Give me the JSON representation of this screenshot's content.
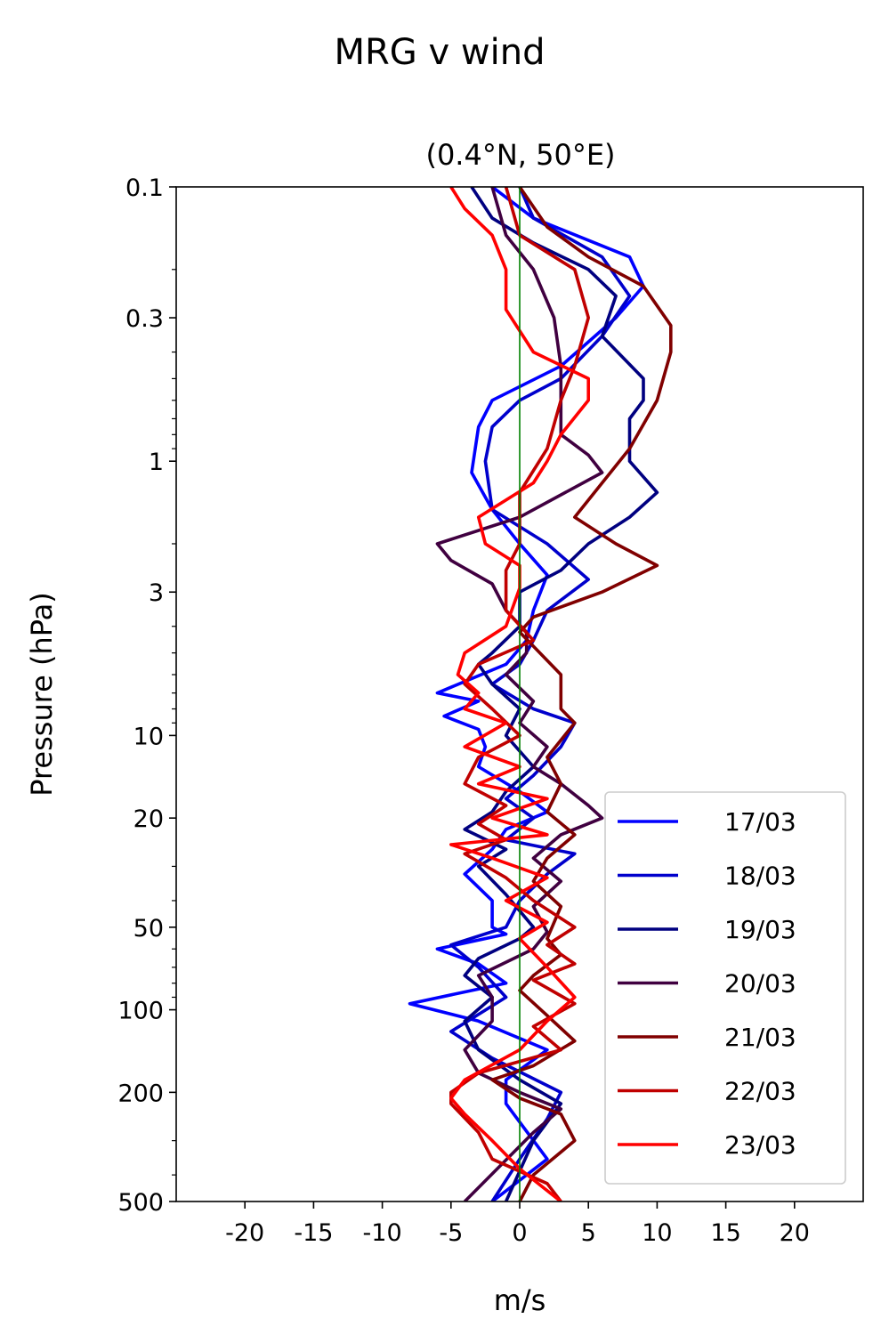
{
  "chart_data": {
    "type": "line",
    "title": "MRG v wind",
    "subtitle": "(0.4°N, 50°E)",
    "xlabel": "m/s",
    "ylabel": "Pressure (hPa)",
    "xlim": [
      -25,
      25
    ],
    "ylim": [
      500,
      0.1
    ],
    "y_scale": "log",
    "x_ticks": [
      -20,
      -15,
      -10,
      -5,
      0,
      5,
      10,
      15,
      20
    ],
    "x_tick_labels": [
      "-20",
      "-15",
      "-10",
      "-5",
      "0",
      "5",
      "10",
      "15",
      "20"
    ],
    "y_ticks": [
      0.1,
      0.3,
      1,
      3,
      10,
      20,
      50,
      100,
      200,
      500
    ],
    "y_tick_labels": [
      "0.1",
      "0.3",
      "1",
      "3",
      "10",
      "20",
      "50",
      "100",
      "200",
      "500"
    ],
    "zero_line_color": "#008000",
    "legend_position": "lower right",
    "grid": false,
    "series": [
      {
        "name": "17/03",
        "color": "#0000ff",
        "points": [
          [
            -2,
            0.1
          ],
          [
            1,
            0.13
          ],
          [
            8,
            0.18
          ],
          [
            9,
            0.23
          ],
          [
            7,
            0.3
          ],
          [
            3,
            0.45
          ],
          [
            -2,
            0.6
          ],
          [
            -3,
            0.75
          ],
          [
            -3.5,
            1.1
          ],
          [
            -2,
            1.5
          ],
          [
            0,
            2
          ],
          [
            2,
            2.6
          ],
          [
            1,
            3.5
          ],
          [
            0.5,
            4.5
          ],
          [
            -1,
            5.5
          ],
          [
            -6,
            7
          ],
          [
            -3,
            7.5
          ],
          [
            -5.5,
            8.5
          ],
          [
            -3,
            9.5
          ],
          [
            -2.5,
            11
          ],
          [
            -3,
            13
          ],
          [
            0,
            16
          ],
          [
            2,
            19
          ],
          [
            -1,
            22
          ],
          [
            -2,
            26
          ],
          [
            -4,
            32
          ],
          [
            -2,
            40
          ],
          [
            -2,
            50
          ],
          [
            -1,
            53
          ],
          [
            -6,
            60
          ],
          [
            -3,
            68
          ],
          [
            -1,
            80
          ],
          [
            -8,
            95
          ],
          [
            -3,
            110
          ],
          [
            2,
            140
          ],
          [
            -1,
            180
          ],
          [
            -1,
            220
          ],
          [
            2,
            350
          ],
          [
            -2,
            500
          ]
        ]
      },
      {
        "name": "18/03",
        "color": "#0000cc",
        "points": [
          [
            0,
            0.1
          ],
          [
            1,
            0.13
          ],
          [
            6,
            0.18
          ],
          [
            8,
            0.25
          ],
          [
            6,
            0.35
          ],
          [
            3,
            0.5
          ],
          [
            0,
            0.6
          ],
          [
            -2,
            0.75
          ],
          [
            -2.5,
            1
          ],
          [
            -2,
            1.5
          ],
          [
            2,
            2
          ],
          [
            5,
            2.7
          ],
          [
            2,
            3.5
          ],
          [
            1,
            4.5
          ],
          [
            0,
            5.5
          ],
          [
            -2,
            6.5
          ],
          [
            1,
            8
          ],
          [
            4,
            9
          ],
          [
            3,
            11
          ],
          [
            1,
            14
          ],
          [
            -1,
            17
          ],
          [
            1,
            20
          ],
          [
            -1,
            24
          ],
          [
            4,
            27
          ],
          [
            2,
            32
          ],
          [
            0,
            40
          ],
          [
            -1,
            50
          ],
          [
            -5,
            58
          ],
          [
            -3,
            70
          ],
          [
            -1,
            90
          ],
          [
            -5,
            120
          ],
          [
            -2,
            150
          ],
          [
            3,
            200
          ],
          [
            2,
            250
          ],
          [
            0,
            350
          ],
          [
            -2,
            500
          ]
        ]
      },
      {
        "name": "19/03",
        "color": "#000080",
        "points": [
          [
            -3.5,
            0.1
          ],
          [
            -2,
            0.13
          ],
          [
            1,
            0.16
          ],
          [
            5,
            0.2
          ],
          [
            7,
            0.25
          ],
          [
            6,
            0.35
          ],
          [
            9,
            0.5
          ],
          [
            9,
            0.6
          ],
          [
            8,
            0.7
          ],
          [
            8,
            1
          ],
          [
            10,
            1.3
          ],
          [
            8,
            1.6
          ],
          [
            5,
            2
          ],
          [
            3,
            2.5
          ],
          [
            0,
            3
          ],
          [
            0,
            4
          ],
          [
            -2,
            5
          ],
          [
            -3,
            5.5
          ],
          [
            -2,
            6.5
          ],
          [
            0,
            8
          ],
          [
            -1,
            10
          ],
          [
            1,
            13
          ],
          [
            -1,
            16
          ],
          [
            -2,
            19
          ],
          [
            -4,
            22
          ],
          [
            -1,
            26
          ],
          [
            -3,
            30
          ],
          [
            -1,
            38
          ],
          [
            1,
            50
          ],
          [
            0,
            55
          ],
          [
            -3,
            65
          ],
          [
            -4,
            75
          ],
          [
            -2,
            90
          ],
          [
            -4,
            110
          ],
          [
            -3,
            140
          ],
          [
            0,
            180
          ],
          [
            3,
            220
          ],
          [
            1,
            300
          ],
          [
            -1,
            500
          ]
        ]
      },
      {
        "name": "20/03",
        "color": "#400040",
        "points": [
          [
            -2,
            0.1
          ],
          [
            -1,
            0.15
          ],
          [
            1,
            0.2
          ],
          [
            2.5,
            0.3
          ],
          [
            3,
            0.45
          ],
          [
            3,
            0.6
          ],
          [
            3,
            0.8
          ],
          [
            5,
            0.95
          ],
          [
            6,
            1.1
          ],
          [
            0,
            1.6
          ],
          [
            -6,
            2
          ],
          [
            -5,
            2.3
          ],
          [
            -2,
            2.8
          ],
          [
            -1,
            3.5
          ],
          [
            0.5,
            4.2
          ],
          [
            0.5,
            5
          ],
          [
            -1,
            6
          ],
          [
            1,
            7.5
          ],
          [
            0,
            9
          ],
          [
            2,
            11
          ],
          [
            1,
            13
          ],
          [
            3,
            15
          ],
          [
            5,
            18
          ],
          [
            6,
            20
          ],
          [
            3,
            23
          ],
          [
            1,
            28
          ],
          [
            3,
            34
          ],
          [
            1,
            42
          ],
          [
            2,
            52
          ],
          [
            1,
            60
          ],
          [
            -3,
            75
          ],
          [
            -2,
            90
          ],
          [
            -2,
            110
          ],
          [
            -4,
            140
          ],
          [
            -3,
            170
          ],
          [
            0,
            200
          ],
          [
            3,
            230
          ],
          [
            1,
            280
          ],
          [
            -4,
            500
          ]
        ]
      },
      {
        "name": "21/03",
        "color": "#800000",
        "points": [
          [
            0,
            0.1
          ],
          [
            2,
            0.14
          ],
          [
            5,
            0.18
          ],
          [
            9,
            0.23
          ],
          [
            11,
            0.32
          ],
          [
            11,
            0.4
          ],
          [
            10,
            0.6
          ],
          [
            8,
            0.9
          ],
          [
            6,
            1.2
          ],
          [
            4,
            1.6
          ],
          [
            7,
            2
          ],
          [
            10,
            2.4
          ],
          [
            6,
            3
          ],
          [
            1,
            3.7
          ],
          [
            0,
            4.2
          ],
          [
            3,
            6
          ],
          [
            3,
            8
          ],
          [
            4,
            9
          ],
          [
            2,
            12
          ],
          [
            3,
            15
          ],
          [
            2,
            19
          ],
          [
            4,
            23
          ],
          [
            2,
            28
          ],
          [
            1,
            34
          ],
          [
            3,
            42
          ],
          [
            2,
            55
          ],
          [
            3,
            63
          ],
          [
            1,
            75
          ],
          [
            0,
            85
          ],
          [
            2,
            105
          ],
          [
            4,
            130
          ],
          [
            1,
            160
          ],
          [
            -2,
            180
          ],
          [
            0,
            210
          ],
          [
            3,
            240
          ],
          [
            4,
            300
          ],
          [
            1,
            400
          ],
          [
            0,
            500
          ]
        ]
      },
      {
        "name": "22/03",
        "color": "#c00000",
        "points": [
          [
            -1,
            0.1
          ],
          [
            0,
            0.15
          ],
          [
            4,
            0.2
          ],
          [
            5,
            0.3
          ],
          [
            4,
            0.45
          ],
          [
            3,
            0.6
          ],
          [
            2,
            0.9
          ],
          [
            0,
            1.3
          ],
          [
            0,
            2
          ],
          [
            -1,
            2.5
          ],
          [
            -1,
            3.5
          ],
          [
            1,
            4.5
          ],
          [
            -3,
            5.5
          ],
          [
            -4,
            6.5
          ],
          [
            -2,
            8
          ],
          [
            0,
            10
          ],
          [
            -3,
            12
          ],
          [
            -4,
            15
          ],
          [
            -1,
            18
          ],
          [
            -3,
            21
          ],
          [
            -1,
            24
          ],
          [
            -4,
            27
          ],
          [
            -1,
            33
          ],
          [
            1,
            40
          ],
          [
            4,
            50
          ],
          [
            2,
            58
          ],
          [
            4,
            68
          ],
          [
            1,
            78
          ],
          [
            4,
            95
          ],
          [
            1,
            115
          ],
          [
            3,
            140
          ],
          [
            -3,
            170
          ],
          [
            -5,
            200
          ],
          [
            -5,
            220
          ],
          [
            -3,
            280
          ],
          [
            -2,
            350
          ],
          [
            2,
            430
          ],
          [
            3,
            500
          ]
        ]
      },
      {
        "name": "23/03",
        "color": "#ff0000",
        "points": [
          [
            -5,
            0.1
          ],
          [
            -4,
            0.12
          ],
          [
            -2,
            0.15
          ],
          [
            -1,
            0.2
          ],
          [
            -1,
            0.28
          ],
          [
            1,
            0.4
          ],
          [
            5,
            0.5
          ],
          [
            5,
            0.6
          ],
          [
            3,
            0.8
          ],
          [
            2,
            1
          ],
          [
            1,
            1.2
          ],
          [
            -3,
            1.6
          ],
          [
            -2.5,
            2
          ],
          [
            0,
            2.4
          ],
          [
            0,
            2.9
          ],
          [
            -1,
            4
          ],
          [
            -4,
            5
          ],
          [
            -4.5,
            6
          ],
          [
            -3,
            7
          ],
          [
            -4,
            8
          ],
          [
            -1,
            9
          ],
          [
            -4,
            11
          ],
          [
            0,
            13
          ],
          [
            -3,
            15
          ],
          [
            2,
            17
          ],
          [
            -2,
            20
          ],
          [
            2,
            23
          ],
          [
            -5,
            25
          ],
          [
            -2,
            28
          ],
          [
            2,
            33
          ],
          [
            -1,
            40
          ],
          [
            2,
            48
          ],
          [
            0,
            55
          ],
          [
            2,
            70
          ],
          [
            4,
            90
          ],
          [
            2,
            110
          ],
          [
            0,
            140
          ],
          [
            -4,
            180
          ],
          [
            -5,
            210
          ],
          [
            -4,
            240
          ],
          [
            -2,
            300
          ],
          [
            0,
            380
          ],
          [
            3,
            500
          ]
        ]
      }
    ]
  }
}
